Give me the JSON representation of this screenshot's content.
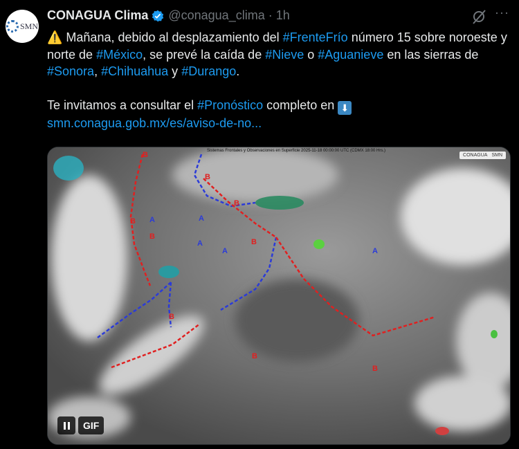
{
  "tweet": {
    "avatar_text": "SMN",
    "display_name": "CONAGUA Clima",
    "handle": "@conagua_clima",
    "separator": "·",
    "time": "1h",
    "more_label": "···",
    "paragraph1": [
      {
        "t": "⚠️ Mañana, debido al desplazamiento del ",
        "tag": false
      },
      {
        "t": "#FrenteFrío",
        "tag": true
      },
      {
        "t": " número 15 sobre noroeste y norte de ",
        "tag": false
      },
      {
        "t": "#México",
        "tag": true
      },
      {
        "t": ", se prevé la caída de ",
        "tag": false
      },
      {
        "t": "#Nieve",
        "tag": true
      },
      {
        "t": " o ",
        "tag": false
      },
      {
        "t": "#Aguanieve",
        "tag": true
      },
      {
        "t": " en las sierras de ",
        "tag": false
      },
      {
        "t": "#Sonora",
        "tag": true
      },
      {
        "t": ", ",
        "tag": false
      },
      {
        "t": "#Chihuahua",
        "tag": true
      },
      {
        "t": " y ",
        "tag": false
      },
      {
        "t": "#Durango",
        "tag": true
      },
      {
        "t": ".",
        "tag": false
      }
    ],
    "paragraph2_pre": "Te invitamos a consultar el ",
    "paragraph2_tag": "#Pronóstico",
    "paragraph2_post": " completo en ",
    "arrow_emoji": "⬇",
    "link": "smn.conagua.gob.mx/es/aviso-de-no..."
  },
  "media": {
    "map_title": "Sistemas Frontales y Observaciones en Superficie 2025-11-18 00:00:00 UTC (CDMX 18:00 Hrs.)",
    "logo1": "CONAGUA",
    "logo2": "SMN",
    "gif_label": "GIF",
    "high_label": "A",
    "low_label": "B"
  },
  "colors": {
    "accent": "#1d9bf0",
    "cold_front": "#2b3bd8",
    "warm_front": "#e02020",
    "background": "#000000"
  }
}
